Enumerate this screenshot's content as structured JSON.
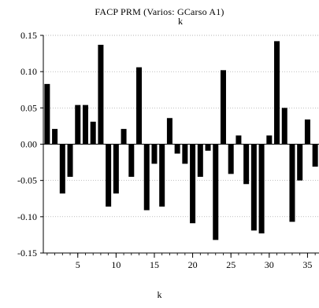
{
  "chart_data": {
    "type": "bar",
    "title": "FACP PRM (Varios: GCarso A1)",
    "title_overlay": "k",
    "xlabel": "k",
    "ylabel": "",
    "ylim": [
      -0.15,
      0.15
    ],
    "xlim": [
      0.5,
      36.5
    ],
    "y_ticks": [
      -0.15,
      -0.1,
      -0.05,
      0.0,
      0.05,
      0.1,
      0.15
    ],
    "y_tick_labels": [
      "-0.15",
      "-0.10",
      "-0.05",
      "0.00",
      "0.05",
      "0.10",
      "0.15"
    ],
    "x_ticks": [
      5,
      10,
      15,
      20,
      25,
      30,
      35
    ],
    "x_tick_labels": [
      "5",
      "10",
      "15",
      "20",
      "25",
      "30",
      "35"
    ],
    "grid": "horizontal-dotted",
    "legend": "none",
    "bar_color": "#000000",
    "categories": [
      1,
      2,
      3,
      4,
      5,
      6,
      7,
      8,
      9,
      10,
      11,
      12,
      13,
      14,
      15,
      16,
      17,
      18,
      19,
      20,
      21,
      22,
      23,
      24,
      25,
      26,
      27,
      28,
      29,
      30,
      31,
      32,
      33,
      34,
      35,
      36
    ],
    "values": [
      0.083,
      0.021,
      -0.068,
      -0.045,
      0.054,
      0.054,
      0.031,
      0.137,
      -0.086,
      -0.068,
      0.021,
      -0.045,
      0.106,
      -0.091,
      -0.027,
      -0.086,
      0.036,
      -0.013,
      -0.027,
      -0.109,
      -0.045,
      -0.009,
      -0.132,
      0.102,
      -0.041,
      0.012,
      -0.055,
      -0.119,
      -0.123,
      0.012,
      0.142,
      0.05,
      -0.107,
      -0.05,
      0.034,
      -0.031
    ]
  }
}
